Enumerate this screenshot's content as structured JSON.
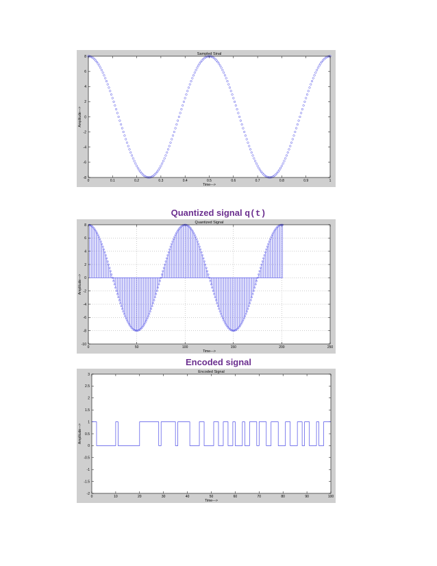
{
  "captions": {
    "quantized_prefix": "Quantized signal ",
    "quantized_code": "q(t)",
    "encoded": "Encoded signal"
  },
  "colors": {
    "series": "#4a4ae6",
    "figure_bg": "#cfcfcf",
    "axes_bg": "#ffffff",
    "caption": "#6b2f8f"
  },
  "chart_data": [
    {
      "type": "scatter",
      "title": "Sampled Sinal",
      "xlabel": "Time--->",
      "ylabel": "Amplitude--->",
      "xlim": [
        0,
        1
      ],
      "ylim": [
        -8,
        8
      ],
      "xticks": [
        0,
        0.1,
        0.2,
        0.3,
        0.4,
        0.5,
        0.6,
        0.7,
        0.8,
        0.9,
        1
      ],
      "yticks": [
        -8,
        -6,
        -4,
        -2,
        0,
        2,
        4,
        6,
        8
      ],
      "grid": false,
      "marker": "circle",
      "series": [
        {
          "function": "8*cos(4*pi*t)",
          "samples": 201,
          "t_range": [
            0,
            1
          ]
        }
      ]
    },
    {
      "type": "stem",
      "title": "Quantized Signal",
      "xlabel": "Time--->",
      "ylabel": "Amplitude--->",
      "xlim": [
        0,
        250
      ],
      "ylim": [
        -10,
        8
      ],
      "xticks": [
        0,
        50,
        100,
        150,
        200,
        250
      ],
      "yticks": [
        -10,
        -8,
        -6,
        -4,
        -2,
        0,
        2,
        4,
        6,
        8
      ],
      "grid": true,
      "marker": "circle",
      "series": [
        {
          "function": "8*cos(2*pi*n/100)",
          "n_range": [
            1,
            201
          ]
        }
      ]
    },
    {
      "type": "line",
      "step": true,
      "title": "Encoded Signal",
      "xlabel": "Time--->",
      "ylabel": "Amplitude--->",
      "xlim": [
        0,
        100
      ],
      "ylim": [
        -2,
        3
      ],
      "xticks": [
        0,
        10,
        20,
        30,
        40,
        50,
        60,
        70,
        80,
        90,
        100
      ],
      "yticks": [
        -2,
        -1.5,
        -1,
        -0.5,
        0,
        0.5,
        1,
        1.5,
        2,
        2.5,
        3
      ],
      "grid": false,
      "series": [
        {
          "name": "",
          "x": [
            0,
            2,
            2,
            10,
            10,
            11,
            11,
            20,
            20,
            28,
            28,
            29,
            29,
            35,
            35,
            36,
            36,
            41,
            41,
            45,
            45,
            47,
            47,
            51,
            51,
            53,
            53,
            55,
            55,
            57,
            57,
            59,
            59,
            60,
            60,
            63,
            63,
            64,
            64,
            66,
            66,
            69,
            69,
            70,
            70,
            73,
            73,
            75,
            75,
            78,
            78,
            81,
            81,
            83,
            83,
            86,
            86,
            88,
            88,
            89,
            89,
            91,
            91,
            94,
            94,
            95,
            95,
            97,
            97,
            100
          ],
          "y": [
            1,
            1,
            0,
            0,
            1,
            1,
            0,
            0,
            1,
            1,
            0,
            0,
            1,
            1,
            0,
            0,
            1,
            1,
            0,
            0,
            1,
            1,
            0,
            0,
            1,
            1,
            0,
            0,
            1,
            1,
            0,
            0,
            1,
            1,
            0,
            0,
            1,
            1,
            0,
            0,
            1,
            1,
            0,
            0,
            1,
            1,
            0,
            0,
            1,
            1,
            0,
            0,
            1,
            1,
            0,
            0,
            1,
            1,
            0,
            0,
            1,
            1,
            0,
            0,
            1,
            1,
            0,
            0,
            1,
            1
          ]
        }
      ]
    }
  ]
}
